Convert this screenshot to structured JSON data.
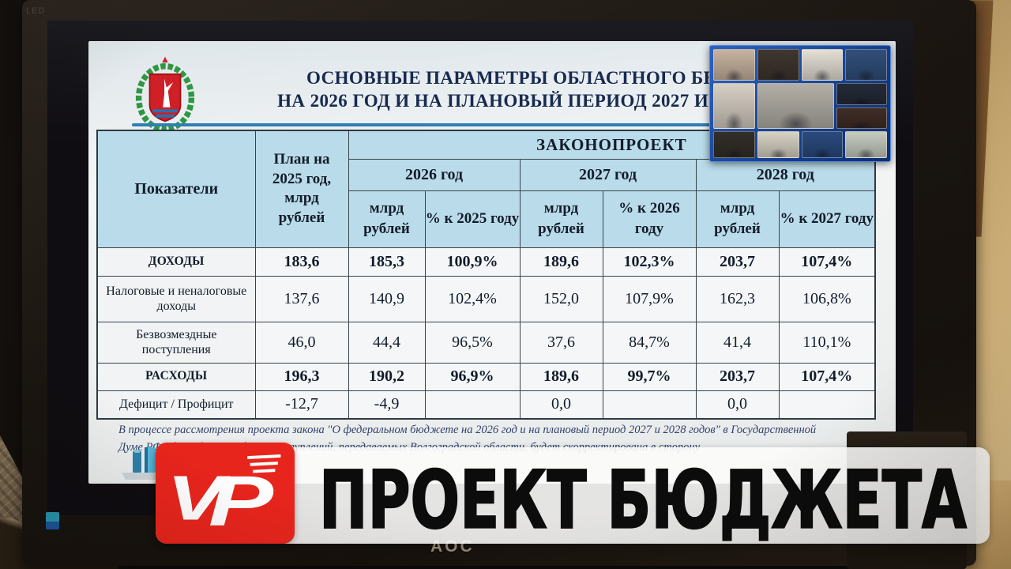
{
  "monitor": {
    "brand": "AOC",
    "panel_label": "LED"
  },
  "slide": {
    "title_line1": "ОСНОВНЫЕ ПАРАМЕТРЫ ОБЛАСТНОГО БЮДЖЕТА",
    "title_line2": "НА 2026 ГОД И НА ПЛАНОВЫЙ ПЕРИОД 2027 И 2028 ГОДОВ",
    "footnote_line1": "В процессе рассмотрения проекта закона \"О федеральном бюджете на 2026 год и на плановый период 2027 и 2028 годов\" в Государственной",
    "footnote_line2": "Думе РФ объем безвозмездных поступлений, передаваемых Волгоградской области, будет скорректирована в сторону"
  },
  "table": {
    "indicator_header": "Показатели",
    "plan_header": "План на 2025 год, млрд рублей",
    "bill_header": "ЗАКОНОПРОЕКТ",
    "year_groups": [
      {
        "year": "2026 год",
        "sub": [
          "млрд рублей",
          "% к 2025 году"
        ]
      },
      {
        "year": "2027 год",
        "sub": [
          "млрд рублей",
          "% к 2026 году"
        ]
      },
      {
        "year": "2028 год",
        "sub": [
          "млрд рублей",
          "% к 2027 году"
        ]
      }
    ],
    "rows": [
      {
        "label": "ДОХОДЫ",
        "bold": true,
        "height": "r-h36",
        "values": [
          "183,6",
          "185,3",
          "100,9%",
          "189,6",
          "102,3%",
          "203,7",
          "107,4%"
        ]
      },
      {
        "label": "Налоговые и неналоговые доходы",
        "bold": false,
        "height": "r-h58",
        "values": [
          "137,6",
          "140,9",
          "102,4%",
          "152,0",
          "107,9%",
          "162,3",
          "106,8%"
        ]
      },
      {
        "label": "Безвозмездные поступления",
        "bold": false,
        "height": "r-h52",
        "values": [
          "46,0",
          "44,4",
          "96,5%",
          "37,6",
          "84,7%",
          "41,4",
          "110,1%"
        ]
      },
      {
        "label": "РАСХОДЫ",
        "bold": true,
        "height": "r-h35",
        "values": [
          "196,3",
          "190,2",
          "96,9%",
          "189,6",
          "99,7%",
          "203,7",
          "107,4%"
        ]
      },
      {
        "label": "Дефицит / Профицит",
        "bold": false,
        "height": "r-h36",
        "values": [
          "-12,7",
          "-4,9",
          "",
          "0,0",
          "",
          "0,0",
          ""
        ]
      }
    ]
  },
  "banner": {
    "logo_text": "VP",
    "title": "ПРОЕКТ БЮДЖЕТА",
    "logo_color": "#e8251d"
  },
  "video_overlay": {
    "row1_colors": [
      "#c7b3a0",
      "#3e362f",
      "#e6e0d6",
      "#31507c"
    ],
    "row2_left_color": "#d6cfc4",
    "row2_center_color": "#b3afa7",
    "row2_right_colors": [
      "#242b38",
      "#3f2d26"
    ],
    "row3_colors": [
      "#332e29",
      "#d8d2c4",
      "#2a4a7e",
      "#c6ccc0"
    ]
  },
  "colors": {
    "table_header_bg": "#badbe9",
    "slide_title_text": "#17294e",
    "divider_blue": "#2f7fb5",
    "banner_red": "#e8251d",
    "wreath_green": "#2f9641",
    "shield_red": "#cf2028"
  }
}
